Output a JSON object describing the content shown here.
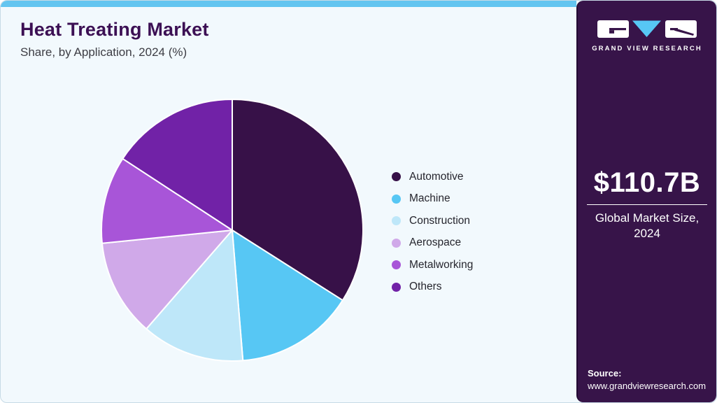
{
  "header": {
    "title": "Heat Treating Market",
    "subtitle": "Share, by Application, 2024 (%)"
  },
  "chart_data": {
    "type": "pie",
    "title": "Heat Treating Market Share, by Application, 2024 (%)",
    "unit": "%",
    "start_angle_deg": 0,
    "direction": "clockwise",
    "categories": [
      "Automotive",
      "Machine",
      "Construction",
      "Aerospace",
      "Metalworking",
      "Others"
    ],
    "values": [
      34.0,
      14.7,
      12.7,
      12.0,
      10.8,
      15.8
    ],
    "colors": [
      "#371148",
      "#57c7f4",
      "#bee7f9",
      "#d0a9e9",
      "#a855d8",
      "#7122a7"
    ],
    "legend_position": "right",
    "slice_border_color": "#ffffff"
  },
  "legend": {
    "items": [
      {
        "label": "Automotive",
        "color": "#371148"
      },
      {
        "label": "Machine",
        "color": "#57c7f4"
      },
      {
        "label": "Construction",
        "color": "#bee7f9"
      },
      {
        "label": "Aerospace",
        "color": "#d0a9e9"
      },
      {
        "label": "Metalworking",
        "color": "#a855d8"
      },
      {
        "label": "Others",
        "color": "#7122a7"
      }
    ]
  },
  "sidebar": {
    "logo_text": "GRAND VIEW RESEARCH",
    "market_size": "$110.7B",
    "caption_line1": "Global Market Size,",
    "caption_line2": "2024",
    "source_label": "Source:",
    "source_url": "www.grandviewresearch.com",
    "background_color": "#371449",
    "accent_blue": "#57c7f4"
  },
  "theme": {
    "topbar_color": "#63c5f0",
    "main_background": "#f2f9fd",
    "title_color": "#3c1054"
  }
}
